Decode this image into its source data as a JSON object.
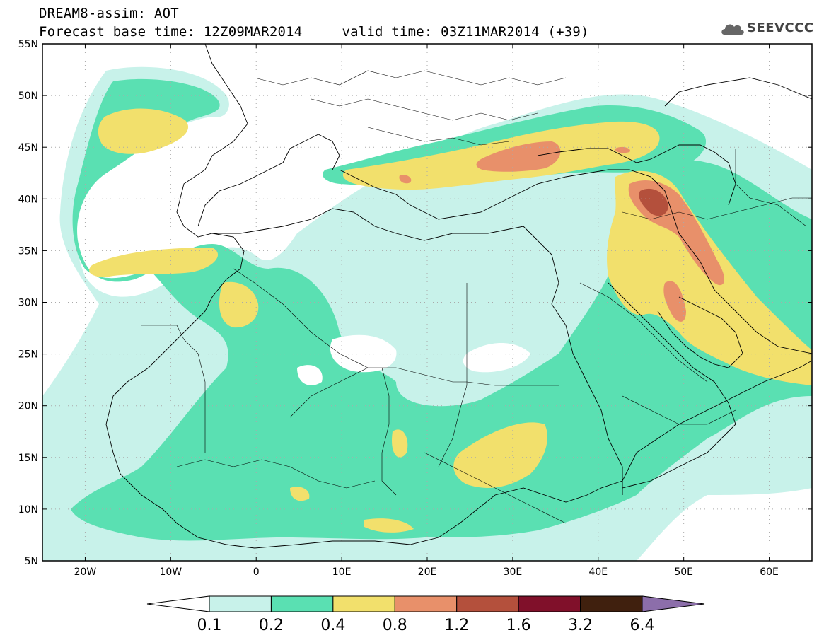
{
  "header": {
    "title": "DREAM8-assim: AOT",
    "base_time": "Forecast base time: 12Z09MAR2014",
    "valid_time": "valid time: 03Z11MAR2014 (+39)",
    "logo_text": "SEEVCCC"
  },
  "map": {
    "lon_range": [
      -25,
      65
    ],
    "lat_range": [
      5,
      55
    ],
    "lon_ticks": [
      "20W",
      "10W",
      "0",
      "10E",
      "20E",
      "30E",
      "40E",
      "50E",
      "60E"
    ],
    "lat_ticks": [
      "5N",
      "10N",
      "15N",
      "20N",
      "25N",
      "30N",
      "35N",
      "40N",
      "45N",
      "50N",
      "55N"
    ]
  },
  "colorbar": {
    "labels": [
      "0.1",
      "0.2",
      "0.4",
      "0.8",
      "1.2",
      "1.6",
      "3.2",
      "6.4"
    ],
    "colors": [
      "#c8f2ea",
      "#5ae0b2",
      "#f2e06c",
      "#e8906a",
      "#b4503c",
      "#80102a",
      "#40200e"
    ],
    "under_color": "#ffffff",
    "over_color": "#8c6eaa"
  }
}
